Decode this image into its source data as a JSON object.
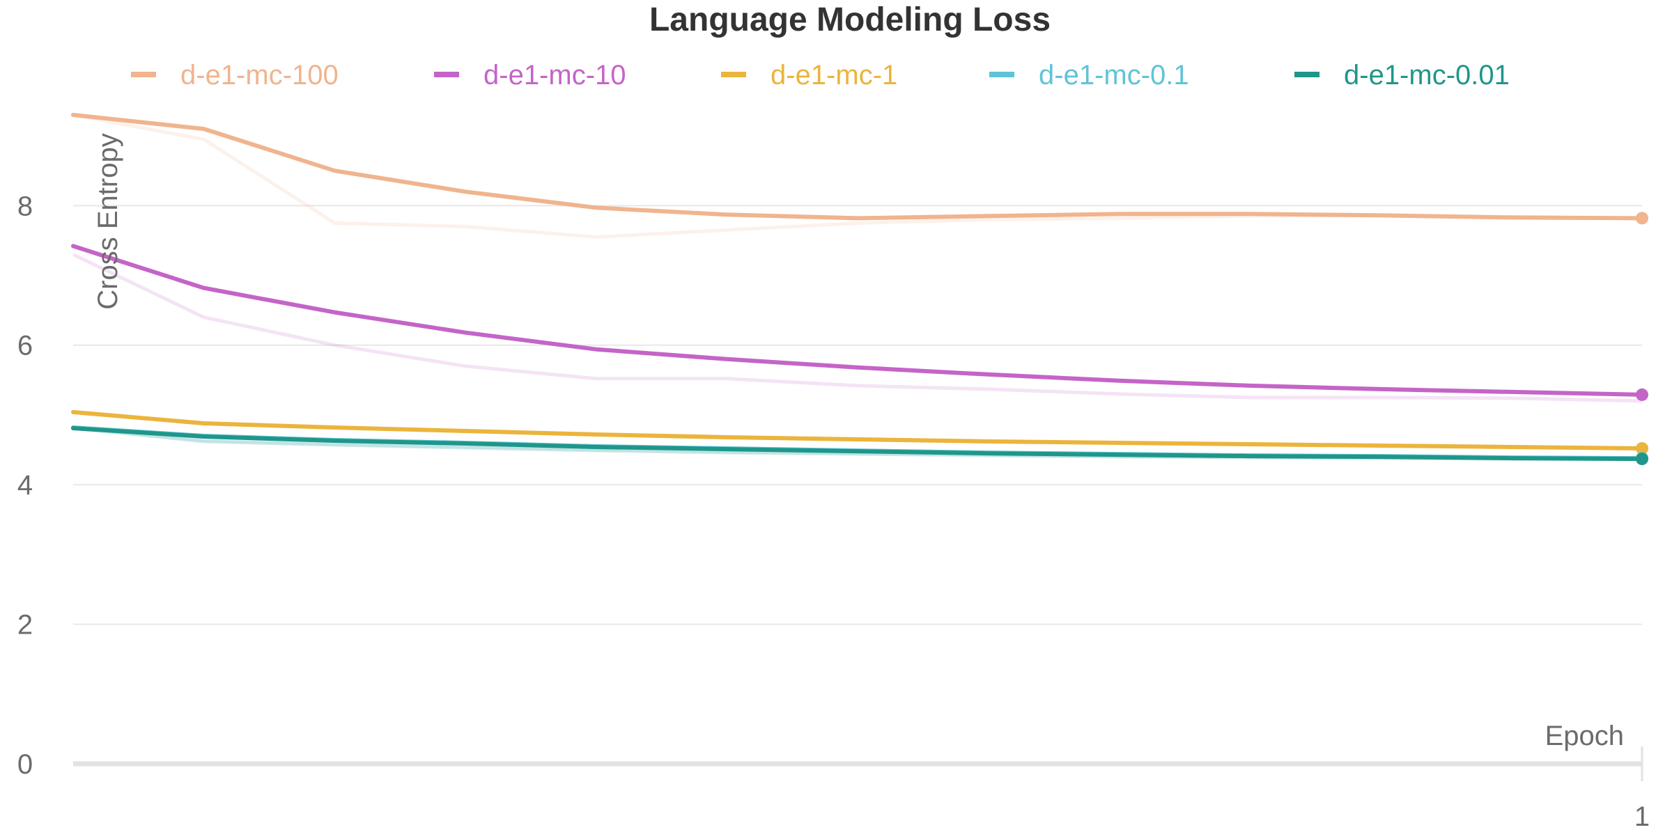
{
  "chart_data": {
    "type": "line",
    "title": "Language Modeling Loss",
    "xlabel": "Epoch",
    "ylabel": "Cross Entropy",
    "xlim": [
      0,
      1
    ],
    "ylim": [
      0,
      9.5
    ],
    "x_ticks": [
      {
        "value": 1,
        "label": "1"
      }
    ],
    "y_ticks": [
      {
        "value": 0,
        "label": "0"
      },
      {
        "value": 2,
        "label": "2"
      },
      {
        "value": 4,
        "label": "4"
      },
      {
        "value": 6,
        "label": "6"
      },
      {
        "value": 8,
        "label": "8"
      }
    ],
    "grid": true,
    "legend_position": "top",
    "x": [
      0,
      0.0833,
      0.1667,
      0.25,
      0.3333,
      0.4167,
      0.5,
      0.5833,
      0.6667,
      0.75,
      0.8333,
      0.9167,
      1
    ],
    "series": [
      {
        "name": "d-e1-mc-100",
        "color": "#f0b48e",
        "values": [
          9.3,
          9.1,
          8.5,
          8.2,
          7.97,
          7.87,
          7.82,
          7.85,
          7.88,
          7.88,
          7.86,
          7.83,
          7.82
        ],
        "raw": [
          9.3,
          8.95,
          7.75,
          7.7,
          7.55,
          7.65,
          7.75,
          7.8,
          7.82,
          7.85,
          7.86,
          7.84,
          7.82
        ]
      },
      {
        "name": "d-e1-mc-10",
        "color": "#c464c8",
        "values": [
          7.42,
          6.82,
          6.47,
          6.18,
          5.94,
          5.8,
          5.68,
          5.58,
          5.49,
          5.42,
          5.37,
          5.33,
          5.29
        ],
        "raw": [
          7.3,
          6.4,
          6.0,
          5.7,
          5.52,
          5.52,
          5.42,
          5.37,
          5.3,
          5.25,
          5.25,
          5.24,
          5.2
        ]
      },
      {
        "name": "d-e1-mc-1",
        "color": "#ebb43c",
        "values": [
          5.04,
          4.88,
          4.82,
          4.77,
          4.72,
          4.68,
          4.65,
          4.62,
          4.6,
          4.58,
          4.56,
          4.54,
          4.52
        ],
        "raw": [
          5.04,
          4.88,
          4.82,
          4.77,
          4.72,
          4.68,
          4.65,
          4.62,
          4.6,
          4.58,
          4.56,
          4.54,
          4.52
        ]
      },
      {
        "name": "d-e1-mc-0.1",
        "color": "#5ec4d6",
        "values": [
          4.82,
          4.7,
          4.64,
          4.6,
          4.55,
          4.52,
          4.49,
          4.46,
          4.44,
          4.42,
          4.41,
          4.39,
          4.38
        ],
        "raw": [
          4.82,
          4.63,
          4.58,
          4.54,
          4.5,
          4.47,
          4.45,
          4.43,
          4.41,
          4.4,
          4.39,
          4.38,
          4.38
        ]
      },
      {
        "name": "d-e1-mc-0.01",
        "color": "#1f968a",
        "values": [
          4.81,
          4.69,
          4.63,
          4.59,
          4.54,
          4.51,
          4.48,
          4.45,
          4.43,
          4.41,
          4.4,
          4.38,
          4.37
        ],
        "raw": [
          4.81,
          4.62,
          4.57,
          4.53,
          4.49,
          4.46,
          4.44,
          4.42,
          4.4,
          4.39,
          4.38,
          4.37,
          4.37
        ]
      }
    ]
  }
}
